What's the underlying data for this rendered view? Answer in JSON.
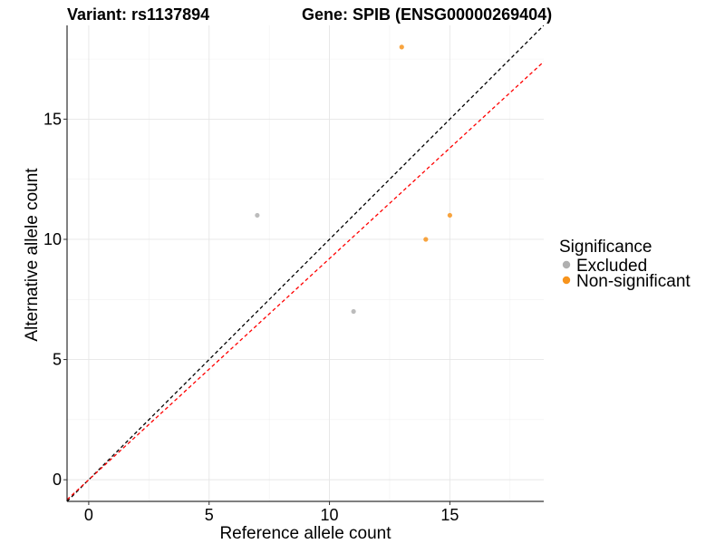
{
  "chart_data": {
    "type": "scatter",
    "title_left": "Variant: rs1137894",
    "title_right": "Gene: SPIB (ENSG00000269404)",
    "xlabel": "Reference allele count",
    "ylabel": "Alternative allele count",
    "xlim": [
      -0.9,
      18.9
    ],
    "ylim": [
      -0.9,
      18.9
    ],
    "x_ticks": [
      0,
      5,
      10,
      15
    ],
    "y_ticks": [
      0,
      5,
      10,
      15
    ],
    "x_tick_labels": [
      "0",
      "5",
      "10",
      "15"
    ],
    "y_tick_labels": [
      "0",
      "5",
      "10",
      "15"
    ],
    "grid": true,
    "legend": {
      "title": "Significance",
      "position": "right",
      "entries": [
        {
          "label": "Excluded",
          "color": "#b0b0b0"
        },
        {
          "label": "Non-significant",
          "color": "#f7941d"
        }
      ]
    },
    "series": [
      {
        "name": "Excluded",
        "color": "#b0b0b0",
        "points": [
          {
            "x": 7,
            "y": 11
          },
          {
            "x": 11,
            "y": 7
          }
        ]
      },
      {
        "name": "Non-significant",
        "color": "#f7941d",
        "points": [
          {
            "x": 13,
            "y": 18
          },
          {
            "x": 14,
            "y": 10
          },
          {
            "x": 15,
            "y": 11
          }
        ]
      }
    ],
    "reference_lines": [
      {
        "slope": 1.0,
        "intercept": 0,
        "color": "#000000",
        "style": "dashed"
      },
      {
        "slope": 0.92,
        "intercept": 0,
        "color": "#ff0000",
        "style": "dashed"
      }
    ]
  }
}
